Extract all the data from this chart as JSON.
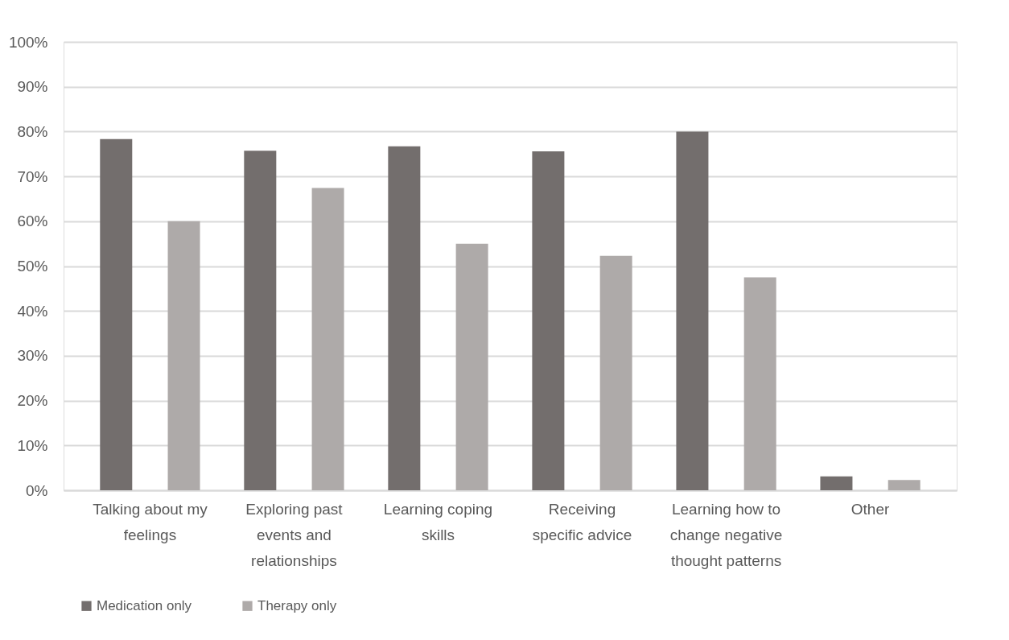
{
  "chart_data": {
    "type": "bar",
    "categories": [
      "Talking about my feelings",
      "Exploring past events and relationships",
      "Learning coping skills",
      "Receiving specific advice",
      "Learning how to change negative thought patterns",
      "Other"
    ],
    "series": [
      {
        "name": "Medication only",
        "color": "#736e6d",
        "values": [
          78.3,
          75.7,
          76.7,
          75.6,
          80,
          3.1
        ]
      },
      {
        "name": "Therapy only",
        "color": "#aeaaa9",
        "values": [
          60,
          67.4,
          55,
          52.3,
          47.5,
          2.3
        ]
      }
    ],
    "ylim": [
      0,
      100
    ],
    "yticks": [
      {
        "value": 0,
        "label": "0%"
      },
      {
        "value": 10,
        "label": "10%"
      },
      {
        "value": 20,
        "label": "20%"
      },
      {
        "value": 30,
        "label": "30%"
      },
      {
        "value": 40,
        "label": "40%"
      },
      {
        "value": 50,
        "label": "50%"
      },
      {
        "value": 60,
        "label": "60%"
      },
      {
        "value": 70,
        "label": "70%"
      },
      {
        "value": 80,
        "label": "80%"
      },
      {
        "value": 90,
        "label": "90%"
      },
      {
        "value": 100,
        "label": "100%"
      }
    ],
    "grid": "y",
    "legend": "bottom"
  }
}
